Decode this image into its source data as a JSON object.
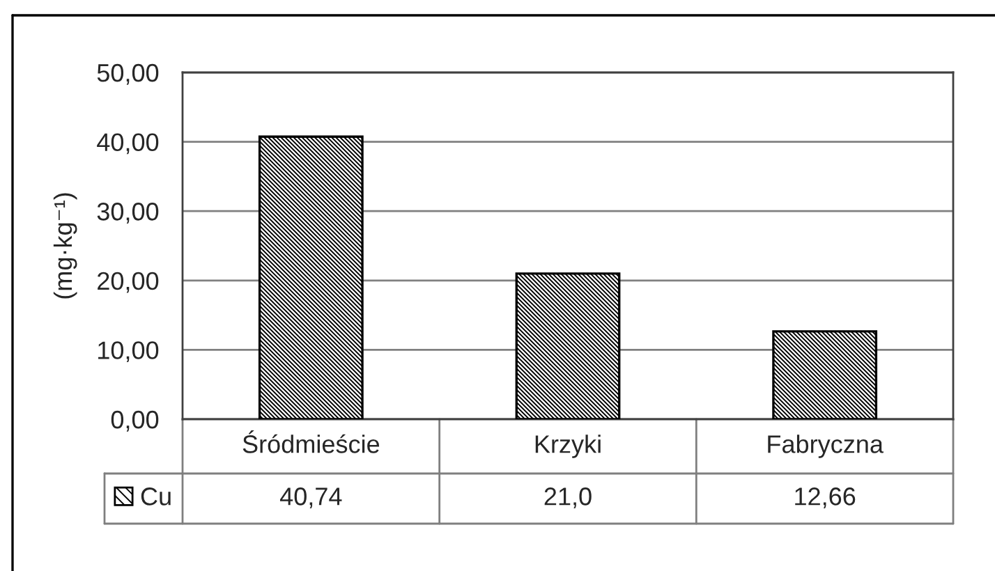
{
  "chart_data": {
    "type": "bar",
    "ylabel": "(mg·kg⁻¹)",
    "categories": [
      "Śródmieście",
      "Krzyki",
      "Fabryczna"
    ],
    "series": [
      {
        "name": "Cu",
        "color": "#000000",
        "values": [
          40.74,
          21.0,
          12.66
        ],
        "value_labels": [
          "40,74",
          "21,0",
          "12,66"
        ]
      }
    ],
    "ylim": [
      0,
      50
    ],
    "yticks": [
      {
        "value": 0,
        "label": "0,00"
      },
      {
        "value": 10,
        "label": "10,00"
      },
      {
        "value": 20,
        "label": "20,00"
      },
      {
        "value": 30,
        "label": "30,00"
      },
      {
        "value": 40,
        "label": "40,00"
      },
      {
        "value": 50,
        "label": "50,00"
      }
    ],
    "grid": "y",
    "legend": "bottom"
  }
}
